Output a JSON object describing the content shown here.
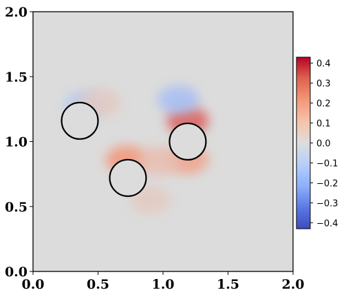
{
  "chart_data": {
    "type": "heatmap",
    "title": "",
    "xlabel": "",
    "ylabel": "",
    "xlim": [
      0.0,
      2.0
    ],
    "ylim": [
      0.0,
      2.0
    ],
    "x_ticks": [
      "0.0",
      "0.5",
      "1.0",
      "1.5",
      "2.0"
    ],
    "y_ticks": [
      "0.0",
      "0.5",
      "1.0",
      "1.5",
      "2.0"
    ],
    "grid": false,
    "colormap": "coolwarm",
    "colorbar": {
      "range": [
        -0.43,
        0.43
      ],
      "ticks": [
        "0.4",
        "0.3",
        "0.2",
        "0.1",
        "0.0",
        "−0.1",
        "−0.2",
        "−0.3",
        "−0.4"
      ],
      "tick_values": [
        0.4,
        0.3,
        0.2,
        0.1,
        0.0,
        -0.1,
        -0.2,
        -0.3,
        -0.4
      ],
      "placement": "right"
    },
    "field_background_value": 0.0,
    "circles": [
      {
        "cx": 0.36,
        "cy": 1.16,
        "r": 0.14
      },
      {
        "cx": 0.73,
        "cy": 0.72,
        "r": 0.14
      },
      {
        "cx": 1.19,
        "cy": 1.0,
        "r": 0.14
      }
    ],
    "field_features": [
      {
        "cx": 1.19,
        "cy": 1.16,
        "value": 0.3
      },
      {
        "cx": 1.19,
        "cy": 0.86,
        "value": 0.18
      },
      {
        "cx": 1.12,
        "cy": 1.32,
        "value": -0.15
      },
      {
        "cx": 0.72,
        "cy": 0.86,
        "value": 0.22
      },
      {
        "cx": 0.4,
        "cy": 1.28,
        "value": -0.1
      },
      {
        "cx": 0.52,
        "cy": 1.3,
        "value": 0.06
      },
      {
        "cx": 0.97,
        "cy": 0.85,
        "value": 0.1
      },
      {
        "cx": 0.9,
        "cy": 0.55,
        "value": 0.06
      }
    ]
  },
  "colors": {
    "background": "#dcdcdc",
    "circle_stroke": "#000000",
    "cmap_min": "#3b4cc0",
    "cmap_mid": "#dddddd",
    "cmap_max": "#b40426"
  }
}
